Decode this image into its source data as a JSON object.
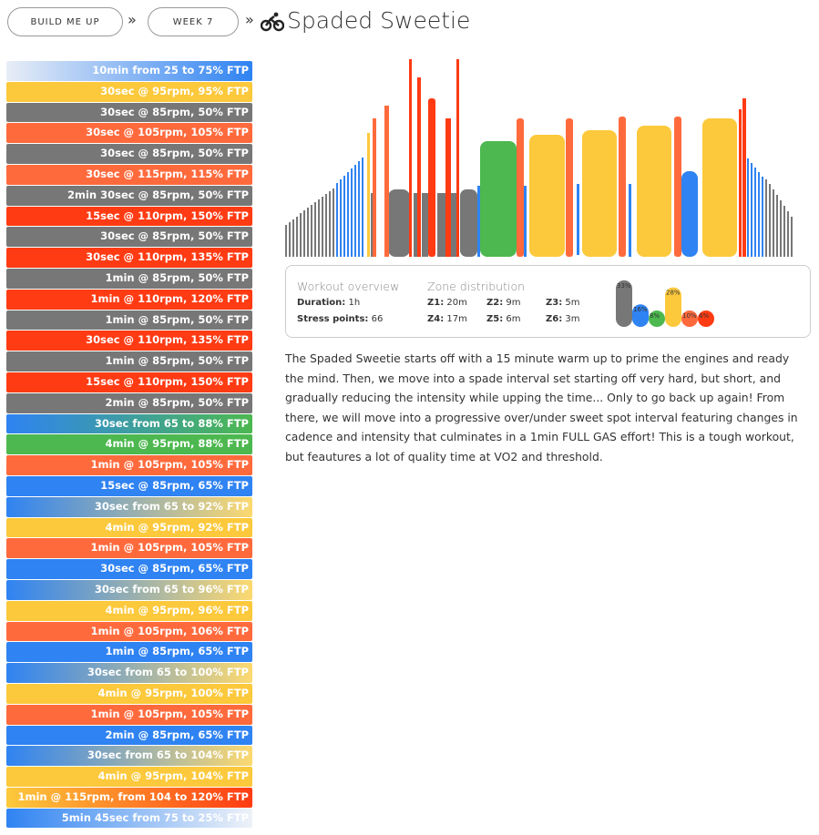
{
  "breadcrumb": [
    "BUILD ME UP",
    "WEEK 7"
  ],
  "title": "Spaded Sweetie",
  "intervals": [
    {
      "text": "10min from 25 to 75% FTP",
      "colors": [
        "#e8edf6",
        "#2f83f2"
      ]
    },
    {
      "text": "30sec @ 95rpm, 95% FTP",
      "colors": [
        "#fcc93c"
      ]
    },
    {
      "text": "30sec @ 85rpm, 50% FTP",
      "colors": [
        "#777777"
      ]
    },
    {
      "text": "30sec @ 105rpm, 105% FTP",
      "colors": [
        "#ff6a3d"
      ]
    },
    {
      "text": "30sec @ 85rpm, 50% FTP",
      "colors": [
        "#777777"
      ]
    },
    {
      "text": "30sec @ 115rpm, 115% FTP",
      "colors": [
        "#ff6a3d"
      ]
    },
    {
      "text": "2min 30sec @ 85rpm, 50% FTP",
      "colors": [
        "#777777"
      ]
    },
    {
      "text": "15sec @ 110rpm, 150% FTP",
      "colors": [
        "#ff3b13"
      ]
    },
    {
      "text": "30sec @ 85rpm, 50% FTP",
      "colors": [
        "#777777"
      ]
    },
    {
      "text": "30sec @ 110rpm, 135% FTP",
      "colors": [
        "#ff3b13"
      ]
    },
    {
      "text": "1min @ 85rpm, 50% FTP",
      "colors": [
        "#777777"
      ]
    },
    {
      "text": "1min @ 110rpm, 120% FTP",
      "colors": [
        "#ff3b13"
      ]
    },
    {
      "text": "1min @ 85rpm, 50% FTP",
      "colors": [
        "#777777"
      ]
    },
    {
      "text": "30sec @ 110rpm, 135% FTP",
      "colors": [
        "#ff3b13"
      ]
    },
    {
      "text": "1min @ 85rpm, 50% FTP",
      "colors": [
        "#777777"
      ]
    },
    {
      "text": "15sec @ 110rpm, 150% FTP",
      "colors": [
        "#ff3b13"
      ]
    },
    {
      "text": "2min @ 85rpm, 50% FTP",
      "colors": [
        "#777777"
      ]
    },
    {
      "text": "30sec from 65 to 88% FTP",
      "colors": [
        "#2f83f2",
        "#4cb84f"
      ]
    },
    {
      "text": "4min @ 95rpm, 88% FTP",
      "colors": [
        "#4cb84f"
      ]
    },
    {
      "text": "1min @ 105rpm, 105% FTP",
      "colors": [
        "#ff6a3d"
      ]
    },
    {
      "text": "15sec @ 85rpm, 65% FTP",
      "colors": [
        "#2f83f2"
      ]
    },
    {
      "text": "30sec from 65 to 92% FTP",
      "colors": [
        "#2f83f2",
        "#fcd970"
      ]
    },
    {
      "text": "4min @ 95rpm, 92% FTP",
      "colors": [
        "#fcc93c"
      ]
    },
    {
      "text": "1min @ 105rpm, 105% FTP",
      "colors": [
        "#ff6a3d"
      ]
    },
    {
      "text": "30sec @ 85rpm, 65% FTP",
      "colors": [
        "#2f83f2"
      ]
    },
    {
      "text": "30sec from 65 to 96% FTP",
      "colors": [
        "#2f83f2",
        "#fcd970"
      ]
    },
    {
      "text": "4min @ 95rpm, 96% FTP",
      "colors": [
        "#fcc93c"
      ]
    },
    {
      "text": "1min @ 105rpm, 106% FTP",
      "colors": [
        "#ff6a3d"
      ]
    },
    {
      "text": "1min @ 85rpm, 65% FTP",
      "colors": [
        "#2f83f2"
      ]
    },
    {
      "text": "30sec from 65 to 100% FTP",
      "colors": [
        "#2f83f2",
        "#fcd970"
      ]
    },
    {
      "text": "4min @ 95rpm, 100% FTP",
      "colors": [
        "#fcc93c"
      ]
    },
    {
      "text": "1min @ 105rpm, 105% FTP",
      "colors": [
        "#ff6a3d"
      ]
    },
    {
      "text": "2min @ 85rpm, 65% FTP",
      "colors": [
        "#2f83f2"
      ]
    },
    {
      "text": "30sec from 65 to 104% FTP",
      "colors": [
        "#2f83f2",
        "#fcd970"
      ]
    },
    {
      "text": "4min @ 95rpm, 104% FTP",
      "colors": [
        "#fcc93c"
      ]
    },
    {
      "text": "1min @ 115rpm, from 104 to 120% FTP",
      "colors": [
        "#fcc93c",
        "#ff3b13"
      ]
    },
    {
      "text": "5min 45sec from 75 to 25% FTP",
      "colors": [
        "#2f83f2",
        "#eef2f8"
      ]
    }
  ],
  "overview": {
    "heading": "Workout overview",
    "duration": {
      "label": "Duration:",
      "value": "1h"
    },
    "stress": {
      "label": "Stress points:",
      "value": "66"
    }
  },
  "zones": {
    "heading": "Zone distribution",
    "items": [
      {
        "label": "Z1:",
        "time": "20m",
        "percent": 33,
        "percent_label": "33%",
        "color": "#777777"
      },
      {
        "label": "Z2:",
        "time": "9m",
        "percent": 16,
        "percent_label": "16%",
        "color": "#2f83f2"
      },
      {
        "label": "Z3:",
        "time": "5m",
        "percent": 8,
        "percent_label": "8%",
        "color": "#4cb84f"
      },
      {
        "label": "Z4:",
        "time": "17m",
        "percent": 28,
        "percent_label": "28%",
        "color": "#fcc93c"
      },
      {
        "label": "Z5:",
        "time": "6m",
        "percent": 10,
        "percent_label": "10%",
        "color": "#ff6a3d"
      },
      {
        "label": "Z6:",
        "time": "3m",
        "percent": 4,
        "percent_label": "4%",
        "color": "#ff3b13"
      }
    ]
  },
  "description": "The Spaded Sweetie starts off with a 15 minute warm up to prime the engines and ready the mind. Then, we move into a spade interval set starting off very hard, but short, and gradually reducing the intensity while upping the time... Only to go back up again! From there, we will move into a progressive over/under sweet spot interval featuring changes in cadence and intensity that culminates in a 1min FULL GAS effort! This is a tough workout, but feautures a lot of quality time at VO2 and threshold."
}
